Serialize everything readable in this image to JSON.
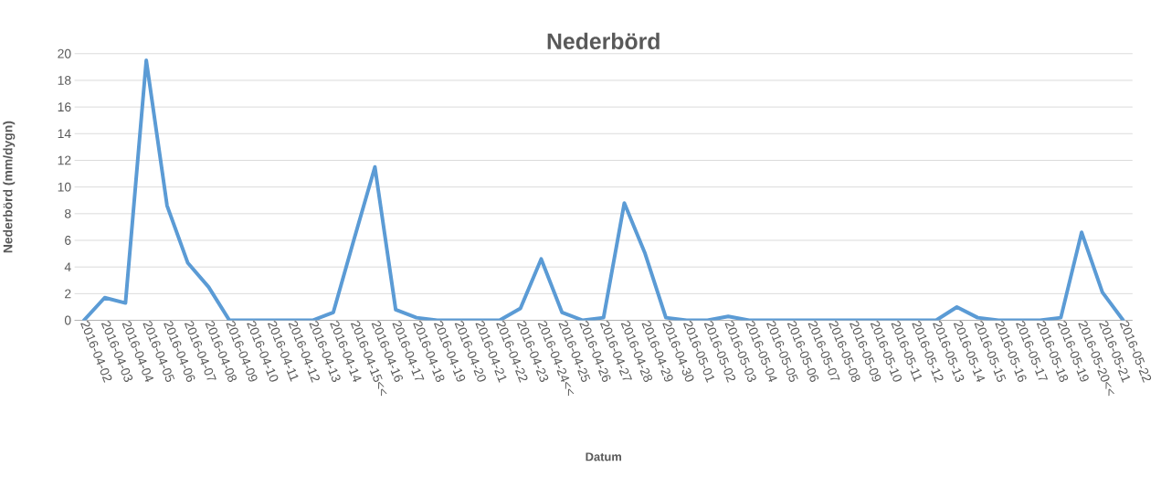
{
  "chart_data": {
    "type": "line",
    "title": "Nederbörd",
    "xlabel": "Datum",
    "ylabel": "Nederbörd (mm/dygn)",
    "categories": [
      "2016-04-02",
      "2016-04-03",
      "2016-04-04",
      "2016-04-05",
      "2016-04-06",
      "2016-04-07",
      "2016-04-08",
      "2016-04-09",
      "2016-04-10",
      "2016-04-11",
      "2016-04-12",
      "2016-04-13",
      "2016-04-14",
      "2016-04-15<<",
      "2016-04-16",
      "2016-04-17",
      "2016-04-18",
      "2016-04-19",
      "2016-04-20",
      "2016-04-21",
      "2016-04-22",
      "2016-04-23",
      "2016-04-24<<",
      "2016-04-25",
      "2016-04-26",
      "2016-04-27",
      "2016-04-28",
      "2016-04-29",
      "2016-04-30",
      "2016-05-01",
      "2016-05-02",
      "2016-05-03",
      "2016-05-04",
      "2016-05-05",
      "2016-05-06",
      "2016-05-07",
      "2016-05-08",
      "2016-05-09",
      "2016-05-10",
      "2016-05-11",
      "2016-05-12",
      "2016-05-13",
      "2016-05-14",
      "2016-05-15",
      "2016-05-16",
      "2016-05-17",
      "2016-05-18",
      "2016-05-19",
      "2016-05-20<<",
      "2016-05-21",
      "2016-05-22"
    ],
    "series": [
      {
        "color": "#5b9bd5",
        "values": [
          0,
          1.7,
          1.3,
          19.5,
          8.6,
          4.3,
          2.5,
          0,
          0,
          0,
          0,
          0,
          0.6,
          6.1,
          11.5,
          0.8,
          0.2,
          0,
          0,
          0,
          0,
          0.9,
          4.6,
          0.6,
          0,
          0.2,
          8.8,
          5.0,
          0.2,
          0,
          0,
          0.3,
          0,
          0,
          0,
          0,
          0,
          0,
          0,
          0,
          0,
          0,
          1.0,
          0.2,
          0,
          0,
          0,
          0.2,
          6.6,
          2.1,
          0
        ]
      }
    ],
    "ylim": [
      0,
      20
    ],
    "yticks": [
      0,
      2,
      4,
      6,
      8,
      10,
      12,
      14,
      16,
      18,
      20
    ],
    "grid": "y",
    "line_style": "solid"
  }
}
